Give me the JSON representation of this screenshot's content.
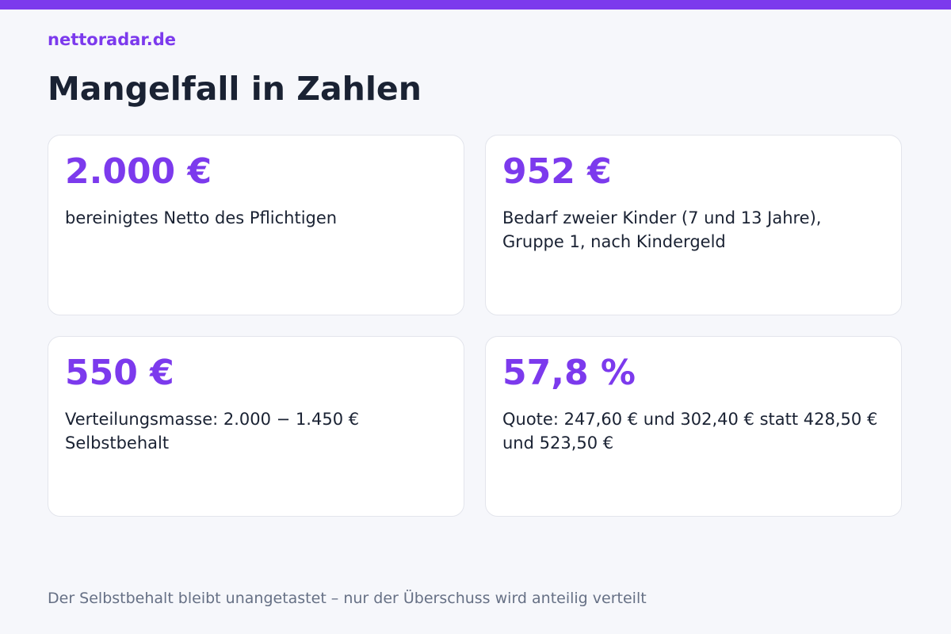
{
  "brand": "nettoradar.de",
  "title": "Mangelfall in Zahlen",
  "cards": [
    {
      "value": "2.000 €",
      "description": "bereinigtes Netto des Pflichtigen"
    },
    {
      "value": "952 €",
      "description": "Bedarf zweier Kinder (7 und 13 Jahre), Gruppe 1, nach Kindergeld"
    },
    {
      "value": "550 €",
      "description": "Verteilungsmasse: 2.000 − 1.450 € Selbstbehalt"
    },
    {
      "value": "57,8 %",
      "description": "Quote: 247,60 € und 302,40 € statt 428,50 € und 523,50 €"
    }
  ],
  "footer": "Der Selbstbehalt bleibt unangetastet – nur der Überschuss wird anteilig verteilt",
  "colors": {
    "accent": "#7c3aed",
    "text": "#1a2233",
    "muted": "#667085",
    "background": "#f6f7fb",
    "card": "#ffffff"
  }
}
